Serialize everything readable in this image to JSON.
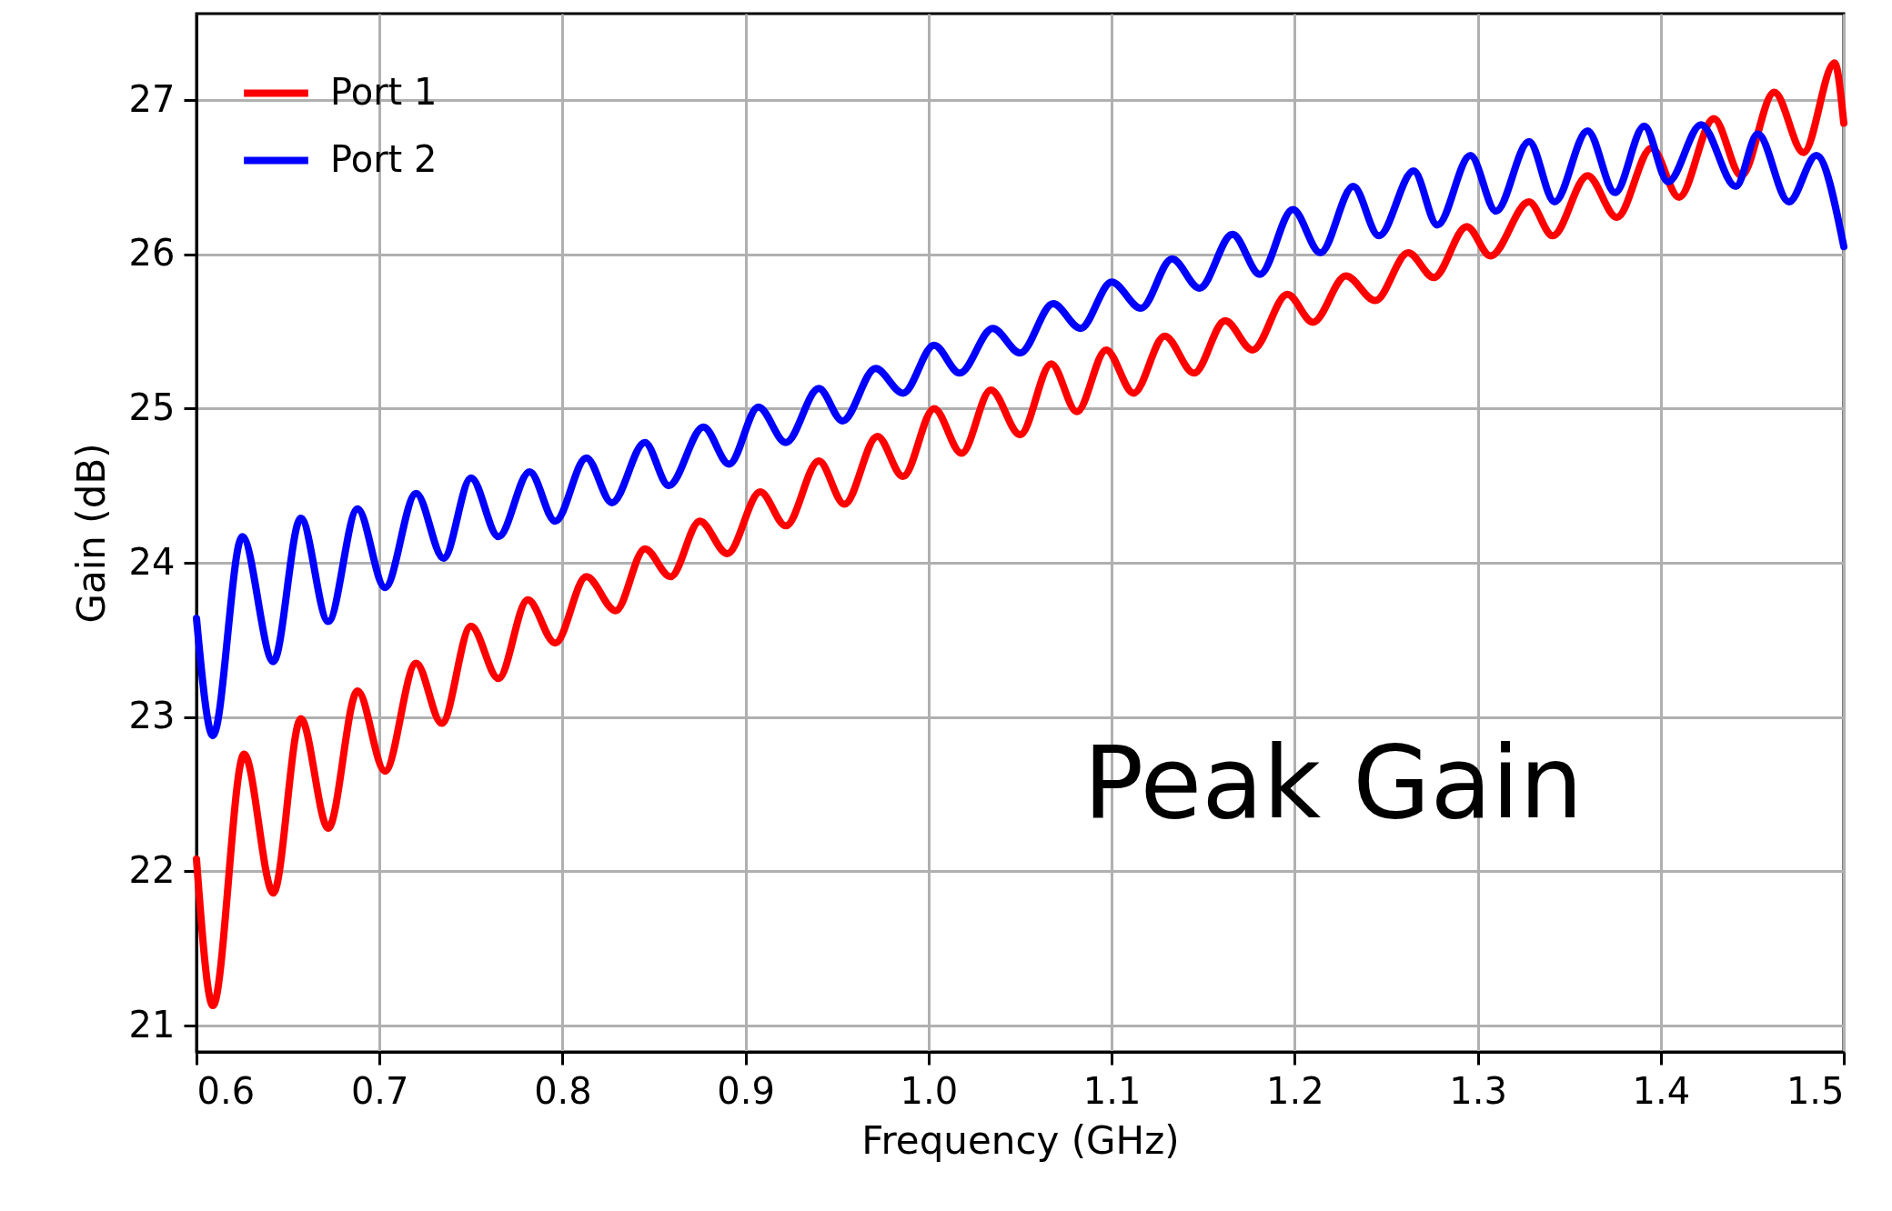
{
  "chart_data": {
    "type": "line",
    "xlabel": "Frequency (GHz)",
    "ylabel": "Gain (dB)",
    "annotations": [
      "Peak Gain"
    ],
    "xlim": [
      0.6,
      1.5
    ],
    "ylim": [
      20.83,
      27.56
    ],
    "xticks": [
      0.6,
      0.7,
      0.8,
      0.9,
      {
        "value": 1,
        "label": "1.0"
      },
      1.1,
      1.2,
      1.3,
      1.4,
      1.5
    ],
    "yticks": [
      21,
      22,
      23,
      24,
      25,
      26,
      27
    ],
    "grid": true,
    "legend": "top left",
    "line_style": "solid",
    "series": [
      {
        "name": "Port 1",
        "color": "#ff0000",
        "x": [
          0.6,
          0.609,
          0.626,
          0.642,
          0.657,
          0.672,
          0.688,
          0.703,
          0.72,
          0.734,
          0.75,
          0.765,
          0.781,
          0.796,
          0.813,
          0.829,
          0.845,
          0.859,
          0.875,
          0.89,
          0.908,
          0.922,
          0.94,
          0.954,
          0.972,
          0.986,
          1.003,
          1.018,
          1.034,
          1.05,
          1.067,
          1.081,
          1.097,
          1.112,
          1.129,
          1.145,
          1.162,
          1.177,
          1.196,
          1.21,
          1.228,
          1.244,
          1.262,
          1.276,
          1.294,
          1.307,
          1.328,
          1.341,
          1.36,
          1.376,
          1.395,
          1.41,
          1.429,
          1.444,
          1.462,
          1.478,
          1.495,
          1.5
        ],
        "values": [
          22.08,
          21.13,
          22.76,
          21.86,
          22.99,
          22.28,
          23.17,
          22.65,
          23.35,
          22.96,
          23.59,
          23.25,
          23.76,
          23.48,
          23.91,
          23.69,
          24.09,
          23.91,
          24.27,
          24.06,
          24.46,
          24.24,
          24.66,
          24.38,
          24.82,
          24.56,
          25.0,
          24.71,
          25.12,
          24.83,
          25.29,
          24.98,
          25.38,
          25.1,
          25.47,
          25.23,
          25.57,
          25.38,
          25.74,
          25.56,
          25.86,
          25.7,
          26.01,
          25.85,
          26.18,
          25.99,
          26.34,
          26.12,
          26.51,
          26.24,
          26.69,
          26.37,
          26.88,
          26.51,
          27.05,
          26.66,
          27.24,
          26.85
        ]
      },
      {
        "name": "Port 2",
        "color": "#0000ff",
        "x": [
          0.6,
          0.609,
          0.625,
          0.642,
          0.657,
          0.672,
          0.688,
          0.703,
          0.72,
          0.735,
          0.75,
          0.765,
          0.782,
          0.796,
          0.813,
          0.827,
          0.845,
          0.858,
          0.877,
          0.891,
          0.907,
          0.922,
          0.94,
          0.953,
          0.971,
          0.986,
          1.003,
          1.017,
          1.035,
          1.05,
          1.068,
          1.083,
          1.1,
          1.116,
          1.133,
          1.148,
          1.166,
          1.181,
          1.199,
          1.214,
          1.232,
          1.246,
          1.265,
          1.278,
          1.296,
          1.31,
          1.328,
          1.342,
          1.36,
          1.375,
          1.391,
          1.404,
          1.422,
          1.441,
          1.453,
          1.47,
          1.485,
          1.5
        ],
        "values": [
          23.64,
          22.88,
          24.17,
          23.36,
          24.29,
          23.62,
          24.35,
          23.84,
          24.45,
          24.03,
          24.55,
          24.17,
          24.59,
          24.27,
          24.68,
          24.39,
          24.78,
          24.5,
          24.88,
          24.64,
          25.01,
          24.78,
          25.13,
          24.92,
          25.26,
          25.1,
          25.41,
          25.23,
          25.52,
          25.36,
          25.68,
          25.52,
          25.82,
          25.65,
          25.97,
          25.78,
          26.13,
          25.87,
          26.29,
          26.01,
          26.44,
          26.12,
          26.54,
          26.19,
          26.64,
          26.28,
          26.73,
          26.34,
          26.8,
          26.4,
          26.83,
          26.47,
          26.84,
          26.44,
          26.78,
          26.34,
          26.64,
          26.05
        ]
      }
    ]
  }
}
